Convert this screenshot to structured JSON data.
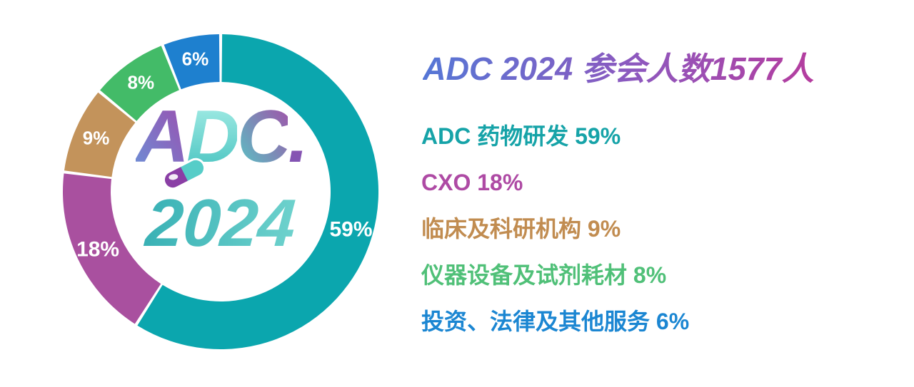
{
  "title": {
    "text": "ADC 2024  参会人数1577人",
    "gradient": [
      "#5577D6",
      "#8E58BE",
      "#B53C9E"
    ]
  },
  "logo": {
    "letters": [
      {
        "ch": "A",
        "from": "#6C8FD6",
        "to": "#9C4DAE",
        "dir": "to top right"
      },
      {
        "ch": "D",
        "from": "#A6EDE6",
        "to": "#47C3C0",
        "dir": "to bottom"
      },
      {
        "ch": "C",
        "from": "#A24FA8",
        "to": "#54CBC6",
        "dir": "to bottom left"
      },
      {
        "ch": ".",
        "from": "#9C4DAE",
        "to": "#7E56B4",
        "dir": "to bottom"
      }
    ],
    "year": "2024",
    "year_gradient": [
      "#1C9FA8",
      "#8BE4DA"
    ],
    "pill_colors": {
      "left": "#8A3FA5",
      "right": "#56CDC8"
    }
  },
  "chart_data": {
    "type": "pie",
    "donut": true,
    "title": "ADC 2024 参会人数1577人",
    "total_attendees": 1577,
    "start_angle_deg": 0,
    "direction": "clockwise",
    "segments": [
      {
        "label": "ADC 药物研发",
        "value": 59,
        "display": "59%",
        "color": "#0BA6AE",
        "legend_color": "#16A3A8",
        "legend_text": "ADC 药物研发  59%"
      },
      {
        "label": "CXO",
        "value": 18,
        "display": "18%",
        "color": "#A9509F",
        "legend_color": "#AE4AA4",
        "legend_text": "CXO  18%"
      },
      {
        "label": "临床及科研机构",
        "value": 9,
        "display": "9%",
        "color": "#C3935B",
        "legend_color": "#C18C50",
        "legend_text": "临床及科研机构 9%"
      },
      {
        "label": "仪器设备及试剂耗材",
        "value": 8,
        "display": "8%",
        "color": "#43BB68",
        "legend_color": "#50C078",
        "legend_text": "仪器设备及试剂耗材 8%"
      },
      {
        "label": "投资、法律及其他服务",
        "value": 6,
        "display": "6%",
        "color": "#1E80CF",
        "legend_color": "#1B86D2",
        "legend_text": "投资、法律及其他服务  6%"
      }
    ]
  }
}
